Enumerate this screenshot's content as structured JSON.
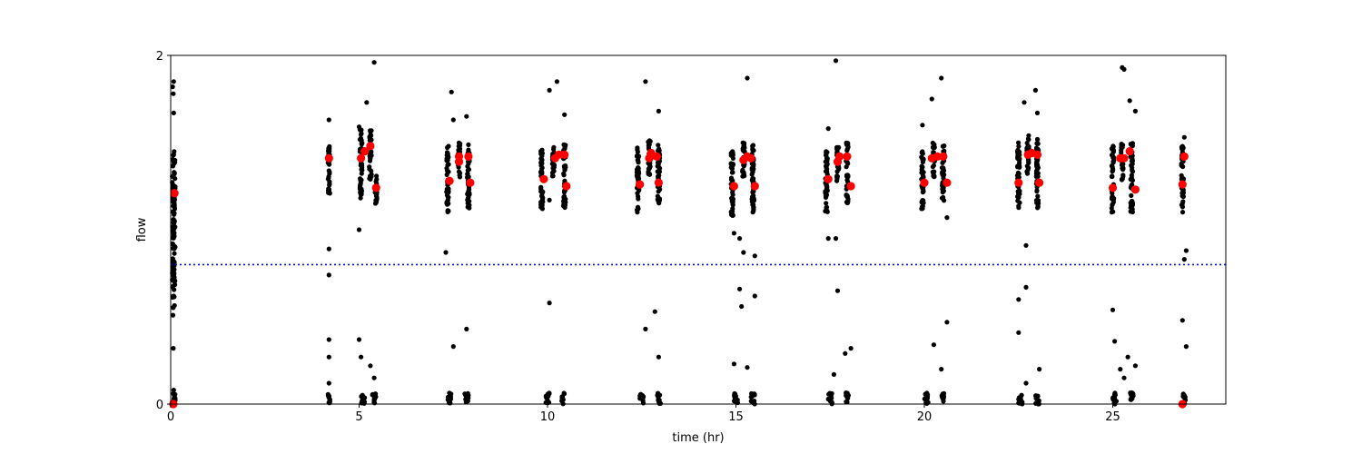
{
  "chart_data": {
    "type": "scatter",
    "title": "",
    "xlabel": "time (hr)",
    "ylabel": "flow",
    "xlim": [
      0,
      28
    ],
    "ylim": [
      0,
      2
    ],
    "x_ticks": [
      0,
      5,
      10,
      15,
      20,
      25
    ],
    "y_ticks": [
      0,
      2
    ],
    "grid": false,
    "reference_line": {
      "y": 0.8,
      "style": "dotted",
      "color": "#0000ff"
    },
    "colors": {
      "raw": "#000000",
      "marked": "#ff0000"
    },
    "series": [
      {
        "role": "raw",
        "clusters": [
          {
            "x": 0.08,
            "x_spread": 0.08,
            "y_low": 1.05,
            "y_high": 1.45
          },
          {
            "x": 0.08,
            "x_spread": 0.08,
            "y_low": 0.55,
            "y_high": 1.05
          },
          {
            "x": 4.2,
            "x_spread": 0.05,
            "y_low": 1.2,
            "y_high": 1.48
          },
          {
            "x": 5.05,
            "x_spread": 0.06,
            "y_low": 1.18,
            "y_high": 1.58
          },
          {
            "x": 5.3,
            "x_spread": 0.06,
            "y_low": 1.28,
            "y_high": 1.58
          },
          {
            "x": 5.45,
            "x_spread": 0.05,
            "y_low": 1.15,
            "y_high": 1.32
          },
          {
            "x": 7.35,
            "x_spread": 0.06,
            "y_low": 1.1,
            "y_high": 1.48
          },
          {
            "x": 7.65,
            "x_spread": 0.06,
            "y_low": 1.3,
            "y_high": 1.5
          },
          {
            "x": 7.9,
            "x_spread": 0.06,
            "y_low": 1.12,
            "y_high": 1.5
          },
          {
            "x": 9.85,
            "x_spread": 0.06,
            "y_low": 1.12,
            "y_high": 1.48
          },
          {
            "x": 10.15,
            "x_spread": 0.06,
            "y_low": 1.3,
            "y_high": 1.48
          },
          {
            "x": 10.45,
            "x_spread": 0.06,
            "y_low": 1.12,
            "y_high": 1.5
          },
          {
            "x": 12.4,
            "x_spread": 0.06,
            "y_low": 1.1,
            "y_high": 1.48
          },
          {
            "x": 12.7,
            "x_spread": 0.06,
            "y_low": 1.3,
            "y_high": 1.52
          },
          {
            "x": 12.95,
            "x_spread": 0.06,
            "y_low": 1.15,
            "y_high": 1.5
          },
          {
            "x": 14.9,
            "x_spread": 0.06,
            "y_low": 1.08,
            "y_high": 1.46
          },
          {
            "x": 15.2,
            "x_spread": 0.06,
            "y_low": 1.3,
            "y_high": 1.5
          },
          {
            "x": 15.45,
            "x_spread": 0.06,
            "y_low": 1.1,
            "y_high": 1.5
          },
          {
            "x": 17.4,
            "x_spread": 0.06,
            "y_low": 1.1,
            "y_high": 1.48
          },
          {
            "x": 17.7,
            "x_spread": 0.06,
            "y_low": 1.28,
            "y_high": 1.5
          },
          {
            "x": 17.95,
            "x_spread": 0.06,
            "y_low": 1.15,
            "y_high": 1.5
          },
          {
            "x": 19.95,
            "x_spread": 0.06,
            "y_low": 1.12,
            "y_high": 1.46
          },
          {
            "x": 20.25,
            "x_spread": 0.06,
            "y_low": 1.3,
            "y_high": 1.5
          },
          {
            "x": 20.5,
            "x_spread": 0.06,
            "y_low": 1.15,
            "y_high": 1.5
          },
          {
            "x": 22.5,
            "x_spread": 0.06,
            "y_low": 1.12,
            "y_high": 1.5
          },
          {
            "x": 22.75,
            "x_spread": 0.06,
            "y_low": 1.3,
            "y_high": 1.55
          },
          {
            "x": 23.0,
            "x_spread": 0.06,
            "y_low": 1.12,
            "y_high": 1.52
          },
          {
            "x": 25.0,
            "x_spread": 0.06,
            "y_low": 1.1,
            "y_high": 1.48
          },
          {
            "x": 25.25,
            "x_spread": 0.06,
            "y_low": 1.28,
            "y_high": 1.5
          },
          {
            "x": 25.5,
            "x_spread": 0.06,
            "y_low": 1.1,
            "y_high": 1.5
          },
          {
            "x": 26.85,
            "x_spread": 0.06,
            "y_low": 1.1,
            "y_high": 1.48
          }
        ],
        "zero_clusters": [
          {
            "x": 0.08,
            "x_spread": 0.08
          },
          {
            "x": 4.2,
            "x_spread": 0.05
          },
          {
            "x": 5.1,
            "x_spread": 0.1
          },
          {
            "x": 5.4,
            "x_spread": 0.1
          },
          {
            "x": 7.4,
            "x_spread": 0.1
          },
          {
            "x": 7.85,
            "x_spread": 0.1
          },
          {
            "x": 10.0,
            "x_spread": 0.1
          },
          {
            "x": 10.4,
            "x_spread": 0.1
          },
          {
            "x": 12.5,
            "x_spread": 0.1
          },
          {
            "x": 12.95,
            "x_spread": 0.1
          },
          {
            "x": 15.0,
            "x_spread": 0.1
          },
          {
            "x": 15.45,
            "x_spread": 0.1
          },
          {
            "x": 17.5,
            "x_spread": 0.1
          },
          {
            "x": 17.95,
            "x_spread": 0.1
          },
          {
            "x": 20.05,
            "x_spread": 0.1
          },
          {
            "x": 20.5,
            "x_spread": 0.1
          },
          {
            "x": 22.55,
            "x_spread": 0.1
          },
          {
            "x": 23.0,
            "x_spread": 0.1
          },
          {
            "x": 25.05,
            "x_spread": 0.1
          },
          {
            "x": 25.5,
            "x_spread": 0.1
          },
          {
            "x": 26.9,
            "x_spread": 0.08
          }
        ],
        "points": [
          [
            0.08,
            1.85
          ],
          [
            0.05,
            1.82
          ],
          [
            0.07,
            1.78
          ],
          [
            0.08,
            1.67
          ],
          [
            0.07,
            1.2
          ],
          [
            0.08,
            1.0
          ],
          [
            0.05,
            0.92
          ],
          [
            0.08,
            0.82
          ],
          [
            0.07,
            0.78
          ],
          [
            0.1,
            0.7
          ],
          [
            0.08,
            0.62
          ],
          [
            0.06,
            0.51
          ],
          [
            0.07,
            0.32
          ],
          [
            0.08,
            0.08
          ],
          [
            0.07,
            0.06
          ],
          [
            4.2,
            1.63
          ],
          [
            4.2,
            0.89
          ],
          [
            4.2,
            0.74
          ],
          [
            4.2,
            0.37
          ],
          [
            4.2,
            0.27
          ],
          [
            4.2,
            0.12
          ],
          [
            5.0,
            1.59
          ],
          [
            5.2,
            1.73
          ],
          [
            5.4,
            1.96
          ],
          [
            5.0,
            1.0
          ],
          [
            5.0,
            0.37
          ],
          [
            5.05,
            0.27
          ],
          [
            5.3,
            0.22
          ],
          [
            5.4,
            0.15
          ],
          [
            7.45,
            1.79
          ],
          [
            7.5,
            1.63
          ],
          [
            7.85,
            1.65
          ],
          [
            7.3,
            0.87
          ],
          [
            7.5,
            0.33
          ],
          [
            7.85,
            0.43
          ],
          [
            10.05,
            1.8
          ],
          [
            10.25,
            1.85
          ],
          [
            10.45,
            1.66
          ],
          [
            10.05,
            0.58
          ],
          [
            10.05,
            1.17
          ],
          [
            12.6,
            1.85
          ],
          [
            12.95,
            1.68
          ],
          [
            12.6,
            0.43
          ],
          [
            12.95,
            0.27
          ],
          [
            12.85,
            0.53
          ],
          [
            15.3,
            1.87
          ],
          [
            14.95,
            0.98
          ],
          [
            15.1,
            0.95
          ],
          [
            15.2,
            0.87
          ],
          [
            15.5,
            0.85
          ],
          [
            15.1,
            0.66
          ],
          [
            15.15,
            0.56
          ],
          [
            15.5,
            0.62
          ],
          [
            14.95,
            0.23
          ],
          [
            15.3,
            0.21
          ],
          [
            17.45,
            1.58
          ],
          [
            17.65,
            1.97
          ],
          [
            17.45,
            0.95
          ],
          [
            17.65,
            0.95
          ],
          [
            17.7,
            0.65
          ],
          [
            17.9,
            0.29
          ],
          [
            18.05,
            0.32
          ],
          [
            17.6,
            0.17
          ],
          [
            19.95,
            1.6
          ],
          [
            20.2,
            1.75
          ],
          [
            20.45,
            1.87
          ],
          [
            20.6,
            1.07
          ],
          [
            20.25,
            0.34
          ],
          [
            20.6,
            0.47
          ],
          [
            20.45,
            0.2
          ],
          [
            22.65,
            1.73
          ],
          [
            22.95,
            1.8
          ],
          [
            23.0,
            1.67
          ],
          [
            22.7,
            0.91
          ],
          [
            22.5,
            0.6
          ],
          [
            22.7,
            0.67
          ],
          [
            22.5,
            0.41
          ],
          [
            23.05,
            0.2
          ],
          [
            22.7,
            0.12
          ],
          [
            25.3,
            1.92
          ],
          [
            25.25,
            1.93
          ],
          [
            25.45,
            1.74
          ],
          [
            25.6,
            1.68
          ],
          [
            25.0,
            0.54
          ],
          [
            25.05,
            0.36
          ],
          [
            25.4,
            0.27
          ],
          [
            25.2,
            0.2
          ],
          [
            25.6,
            0.22
          ],
          [
            25.3,
            0.15
          ],
          [
            26.9,
            1.53
          ],
          [
            26.95,
            0.88
          ],
          [
            26.9,
            0.83
          ],
          [
            26.85,
            0.48
          ],
          [
            26.95,
            0.33
          ]
        ]
      },
      {
        "role": "marked",
        "points": [
          [
            0.1,
            1.21
          ],
          [
            0.07,
            0.0
          ],
          [
            4.2,
            1.41
          ],
          [
            5.05,
            1.41
          ],
          [
            5.15,
            1.45
          ],
          [
            5.3,
            1.48
          ],
          [
            5.45,
            1.24
          ],
          [
            7.4,
            1.28
          ],
          [
            7.65,
            1.39
          ],
          [
            7.65,
            1.42
          ],
          [
            7.9,
            1.42
          ],
          [
            7.95,
            1.27
          ],
          [
            9.9,
            1.29
          ],
          [
            10.2,
            1.41
          ],
          [
            10.3,
            1.43
          ],
          [
            10.45,
            1.43
          ],
          [
            10.5,
            1.25
          ],
          [
            12.45,
            1.26
          ],
          [
            12.7,
            1.41
          ],
          [
            12.75,
            1.44
          ],
          [
            12.9,
            1.42
          ],
          [
            12.95,
            1.27
          ],
          [
            14.95,
            1.25
          ],
          [
            15.2,
            1.4
          ],
          [
            15.3,
            1.42
          ],
          [
            15.4,
            1.41
          ],
          [
            15.5,
            1.25
          ],
          [
            17.45,
            1.29
          ],
          [
            17.7,
            1.39
          ],
          [
            17.75,
            1.42
          ],
          [
            17.95,
            1.42
          ],
          [
            18.05,
            1.25
          ],
          [
            20.0,
            1.27
          ],
          [
            20.2,
            1.41
          ],
          [
            20.35,
            1.42
          ],
          [
            20.5,
            1.42
          ],
          [
            20.6,
            1.27
          ],
          [
            22.5,
            1.27
          ],
          [
            22.75,
            1.43
          ],
          [
            22.85,
            1.44
          ],
          [
            23.0,
            1.43
          ],
          [
            23.05,
            1.27
          ],
          [
            25.0,
            1.24
          ],
          [
            25.2,
            1.41
          ],
          [
            25.3,
            1.41
          ],
          [
            25.45,
            1.45
          ],
          [
            25.6,
            1.23
          ],
          [
            26.85,
            1.26
          ],
          [
            26.9,
            1.42
          ],
          [
            26.85,
            0.0
          ]
        ]
      }
    ]
  }
}
